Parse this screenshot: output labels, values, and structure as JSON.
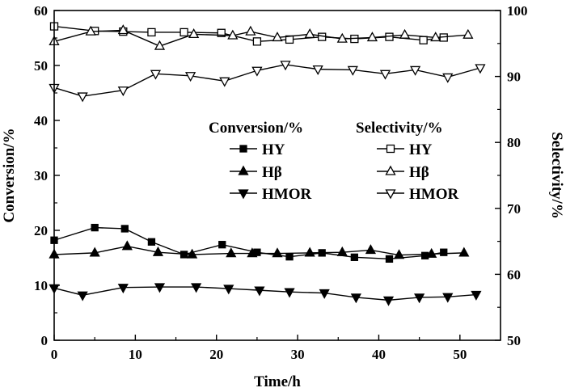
{
  "chart_data": {
    "type": "line",
    "xlabel": "Time/h",
    "ylabel": "Conversion/%",
    "y2label": "Selectivity/%",
    "xlim": [
      0,
      55
    ],
    "ylim": [
      0,
      60
    ],
    "y2lim": [
      50,
      100
    ],
    "xticks": [
      "0",
      "10",
      "20",
      "30",
      "40",
      "50"
    ],
    "yticks": [
      "0",
      "10",
      "20",
      "30",
      "40",
      "50",
      "60"
    ],
    "y2ticks": [
      "50",
      "60",
      "70",
      "80",
      "90",
      "100"
    ],
    "legend": {
      "position": "center-right",
      "heading_left": "Conversion/%",
      "heading_right": "Selectivity/%"
    },
    "series": [
      {
        "name": "HY",
        "group": "conversion",
        "axis": "left",
        "marker": "square-filled",
        "x": [
          0,
          5,
          8.7,
          12,
          16,
          20.7,
          25,
          29,
          33,
          37,
          41.3,
          45.7,
          48
        ],
        "y": [
          18.2,
          20.5,
          20.3,
          17.9,
          15.6,
          17.4,
          16.0,
          15.2,
          15.9,
          15.1,
          14.8,
          15.4,
          16.0
        ]
      },
      {
        "name": "Hβ",
        "group": "conversion",
        "axis": "left",
        "marker": "triangle-up-filled",
        "x": [
          0,
          5,
          9,
          12.8,
          17,
          21.8,
          24.4,
          27.5,
          31.5,
          35.5,
          39,
          42.5,
          46.5,
          50.5
        ],
        "y": [
          15.6,
          15.9,
          17.1,
          16.0,
          15.6,
          15.8,
          15.8,
          15.8,
          15.9,
          16.0,
          16.4,
          15.5,
          15.7,
          15.9
        ]
      },
      {
        "name": "HMOR",
        "group": "conversion",
        "axis": "left",
        "marker": "triangle-down-filled",
        "x": [
          0,
          3.5,
          8.5,
          13,
          17.5,
          21.5,
          25.3,
          29,
          33.3,
          37.2,
          41.2,
          45,
          48.5,
          52
        ],
        "y": [
          9.5,
          8.2,
          9.6,
          9.7,
          9.7,
          9.4,
          9.1,
          8.8,
          8.6,
          7.8,
          7.3,
          7.8,
          7.9,
          8.3
        ]
      },
      {
        "name": "HY",
        "group": "selectivity",
        "axis": "right",
        "marker": "square-open",
        "x": [
          0,
          5,
          8.5,
          12,
          16,
          20.6,
          25,
          29,
          33,
          37,
          41.3,
          45.5,
          48
        ],
        "y": [
          97.6,
          96.9,
          96.8,
          96.7,
          96.7,
          96.6,
          95.3,
          95.6,
          96.0,
          95.7,
          96.0,
          95.5,
          95.9
        ]
      },
      {
        "name": "Hβ",
        "group": "selectivity",
        "axis": "right",
        "marker": "triangle-up-open",
        "x": [
          0,
          4.5,
          8.5,
          13,
          17.2,
          22,
          24.2,
          27.5,
          31.5,
          35.5,
          39.2,
          43.2,
          47,
          51
        ],
        "y": [
          95.3,
          96.8,
          97.0,
          94.6,
          96.4,
          96.2,
          96.8,
          95.9,
          96.4,
          95.7,
          95.9,
          96.3,
          95.9,
          96.3
        ]
      },
      {
        "name": "HMOR",
        "group": "selectivity",
        "axis": "right",
        "marker": "triangle-down-open",
        "x": [
          0,
          3.5,
          8.5,
          12.5,
          16.8,
          21,
          25,
          28.5,
          32.5,
          36.8,
          40.8,
          44.5,
          48.5,
          52.5
        ],
        "y": [
          88.3,
          87.0,
          87.9,
          90.4,
          90.1,
          89.3,
          90.9,
          91.8,
          91.1,
          91.0,
          90.4,
          91.0,
          89.9,
          91.3
        ]
      }
    ]
  }
}
